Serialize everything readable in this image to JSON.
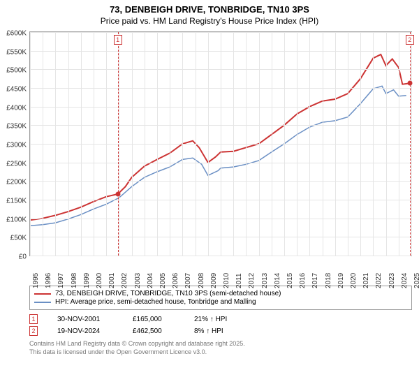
{
  "titles": {
    "line1": "73, DENBEIGH DRIVE, TONBRIDGE, TN10 3PS",
    "line2": "Price paid vs. HM Land Registry's House Price Index (HPI)"
  },
  "chart": {
    "type": "line",
    "background_color": "#ffffff",
    "grid_color": "#e5e5e5",
    "border_color": "#999999",
    "x_years": [
      1995,
      1996,
      1997,
      1998,
      1999,
      2000,
      2001,
      2002,
      2003,
      2004,
      2005,
      2006,
      2007,
      2008,
      2009,
      2010,
      2011,
      2012,
      2013,
      2014,
      2015,
      2016,
      2017,
      2018,
      2019,
      2020,
      2021,
      2022,
      2023,
      2024,
      2025
    ],
    "y_ticks": [
      0,
      50,
      100,
      150,
      200,
      250,
      300,
      350,
      400,
      450,
      500,
      550,
      600
    ],
    "y_tick_labels": [
      "£0",
      "£50K",
      "£100K",
      "£150K",
      "£200K",
      "£250K",
      "£300K",
      "£350K",
      "£400K",
      "£450K",
      "£500K",
      "£550K",
      "£600K"
    ],
    "ylim": [
      0,
      600
    ],
    "xlim": [
      1995,
      2025
    ],
    "series1": {
      "label": "73, DENBEIGH DRIVE, TONBRIDGE, TN10 3PS (semi-detached house)",
      "color": "#cc3333",
      "line_width": 2,
      "points": [
        [
          1995,
          95
        ],
        [
          1996,
          100
        ],
        [
          1997,
          108
        ],
        [
          1998,
          118
        ],
        [
          1999,
          130
        ],
        [
          2000,
          145
        ],
        [
          2001,
          158
        ],
        [
          2001.9,
          165
        ],
        [
          2002.5,
          185
        ],
        [
          2003,
          210
        ],
        [
          2004,
          240
        ],
        [
          2005,
          258
        ],
        [
          2006,
          275
        ],
        [
          2007,
          300
        ],
        [
          2007.8,
          308
        ],
        [
          2008.3,
          290
        ],
        [
          2009,
          250
        ],
        [
          2009.6,
          265
        ],
        [
          2010,
          278
        ],
        [
          2011,
          280
        ],
        [
          2012,
          290
        ],
        [
          2013,
          300
        ],
        [
          2014,
          325
        ],
        [
          2015,
          350
        ],
        [
          2016,
          380
        ],
        [
          2017,
          400
        ],
        [
          2018,
          415
        ],
        [
          2019,
          420
        ],
        [
          2020,
          435
        ],
        [
          2021,
          475
        ],
        [
          2022,
          530
        ],
        [
          2022.6,
          540
        ],
        [
          2023,
          510
        ],
        [
          2023.5,
          528
        ],
        [
          2024,
          505
        ],
        [
          2024.3,
          460
        ],
        [
          2024.88,
          462.5
        ]
      ]
    },
    "series2": {
      "label": "HPI: Average price, semi-detached house, Tonbridge and Malling",
      "color": "#6a8fc4",
      "line_width": 1.5,
      "points": [
        [
          1995,
          80
        ],
        [
          1996,
          83
        ],
        [
          1997,
          88
        ],
        [
          1998,
          98
        ],
        [
          1999,
          110
        ],
        [
          2000,
          125
        ],
        [
          2001,
          138
        ],
        [
          2002,
          155
        ],
        [
          2003,
          185
        ],
        [
          2004,
          210
        ],
        [
          2005,
          225
        ],
        [
          2006,
          238
        ],
        [
          2007,
          258
        ],
        [
          2007.8,
          262
        ],
        [
          2008.5,
          245
        ],
        [
          2009,
          215
        ],
        [
          2009.8,
          228
        ],
        [
          2010,
          235
        ],
        [
          2011,
          238
        ],
        [
          2012,
          245
        ],
        [
          2013,
          255
        ],
        [
          2014,
          278
        ],
        [
          2015,
          300
        ],
        [
          2016,
          325
        ],
        [
          2017,
          345
        ],
        [
          2018,
          358
        ],
        [
          2019,
          362
        ],
        [
          2020,
          372
        ],
        [
          2021,
          408
        ],
        [
          2022,
          448
        ],
        [
          2022.7,
          455
        ],
        [
          2023,
          435
        ],
        [
          2023.6,
          445
        ],
        [
          2024,
          428
        ],
        [
          2024.6,
          430
        ]
      ]
    },
    "markers": [
      {
        "id": "1",
        "year": 2001.9,
        "dot_value": 165,
        "dot_color": "#cc3333"
      },
      {
        "id": "2",
        "year": 2024.88,
        "dot_value": 462.5,
        "dot_color": "#cc3333"
      }
    ]
  },
  "legend": {
    "border_color": "#999999"
  },
  "sales": [
    {
      "id": "1",
      "date": "30-NOV-2001",
      "price": "£165,000",
      "delta": "21% ↑ HPI"
    },
    {
      "id": "2",
      "date": "19-NOV-2024",
      "price": "£462,500",
      "delta": "8% ↑ HPI"
    }
  ],
  "footer": {
    "line1": "Contains HM Land Registry data © Crown copyright and database right 2025.",
    "line2": "This data is licensed under the Open Government Licence v3.0."
  }
}
